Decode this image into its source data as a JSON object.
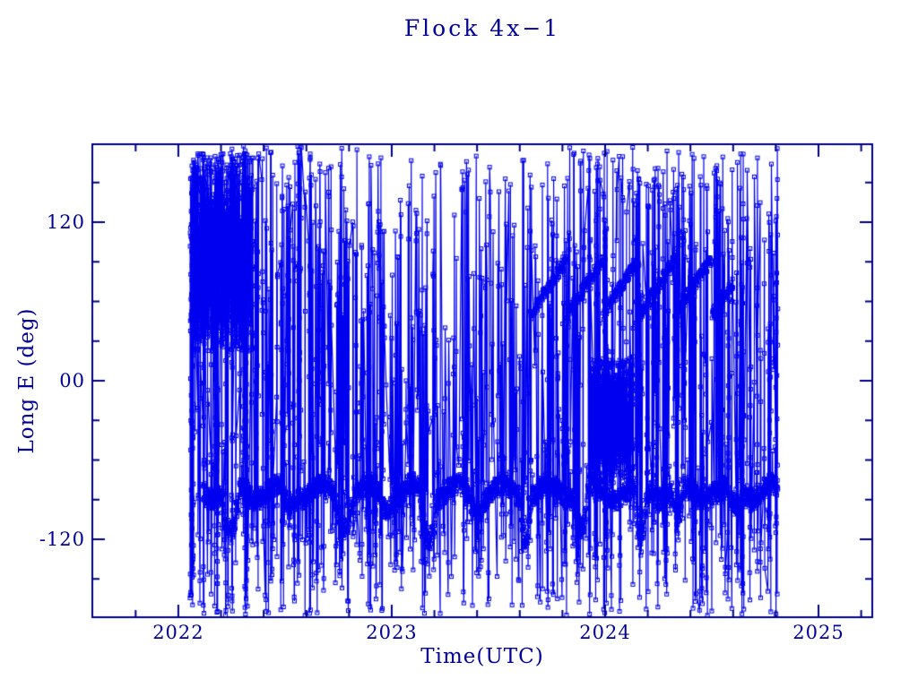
{
  "colors": {
    "background": "#ffffff",
    "axis": "#000080",
    "text": "#000099",
    "data": "#0000f0"
  },
  "chart_data": {
    "type": "scatter",
    "title": "Flock 4x−1",
    "xlabel": "Time(UTC)",
    "ylabel": "Long E (deg)",
    "xlim": [
      2021.597,
      2025.252
    ],
    "ylim": [
      -179,
      179
    ],
    "grid": false,
    "legend": null,
    "x_ticks": {
      "major": [
        {
          "value": 2022,
          "label": "2022"
        },
        {
          "value": 2023,
          "label": "2023"
        },
        {
          "value": 2024,
          "label": "2024"
        },
        {
          "value": 2025,
          "label": "2025"
        }
      ],
      "minor_step": 0.2
    },
    "y_ticks": {
      "major": [
        {
          "value": 120,
          "label": "120"
        },
        {
          "value": 0,
          "label": "00"
        },
        {
          "value": -120,
          "label": "-120"
        }
      ],
      "minor": [
        -150,
        -90,
        -60,
        -30,
        30,
        60,
        90,
        150
      ]
    },
    "marker": {
      "shape": "open-square",
      "size": 4,
      "color": "#0000f0"
    },
    "line": {
      "connect": true,
      "width": 1.2,
      "color": "#0000f0"
    },
    "data_extent": {
      "t_start": 2022.055,
      "t_end": 2024.81,
      "lon_min": -178,
      "lon_max": 178
    },
    "synthesis": {
      "seed": 20220113,
      "hash": {
        "lon_range": [
          -178,
          178
        ],
        "gap_probability": 0.05,
        "gap_extra_days": [
          2,
          6
        ],
        "intervals": [
          {
            "t0": 2022.055,
            "t1": 2022.18,
            "per_day": 10
          },
          {
            "t0": 2022.18,
            "t1": 2022.32,
            "per_day": 7.5
          },
          {
            "t0": 2022.32,
            "t1": 2022.62,
            "per_day": 4.0
          },
          {
            "t0": 2022.62,
            "t1": 2023.02,
            "per_day": 2.6
          },
          {
            "t0": 2023.02,
            "t1": 2023.36,
            "per_day": 2.0
          },
          {
            "t0": 2023.36,
            "t1": 2023.62,
            "per_day": 1.3
          },
          {
            "t0": 2023.62,
            "t1": 2023.93,
            "per_day": 2.6
          },
          {
            "t0": 2023.93,
            "t1": 2024.15,
            "per_day": 5.0
          },
          {
            "t0": 2024.15,
            "t1": 2024.56,
            "per_day": 3.0
          },
          {
            "t0": 2024.56,
            "t1": 2024.81,
            "per_day": 5.0
          }
        ]
      },
      "band": {
        "t0": 2022.12,
        "t1": 2024.81,
        "per_day": 2.2,
        "center": -84,
        "wave_amp": 6,
        "wave_period": 0.21,
        "jitter": 8,
        "outlier_probability": 0.08,
        "outlier_extra": [
          12,
          37
        ],
        "dip_depth": [
          10,
          40
        ],
        "dip_width": [
          0.05,
          0.1
        ],
        "dip_gap": [
          0.05,
          0.22
        ]
      },
      "clusters": [
        {
          "t0": 2022.06,
          "t1": 2022.35,
          "lon_min": 22,
          "lon_max": 172,
          "per_day": 6
        },
        {
          "t0": 2023.93,
          "t1": 2024.13,
          "lon_min": -78,
          "lon_max": 18,
          "per_day": 7
        }
      ],
      "sawtooth_strip": {
        "t0": 2023.65,
        "t1": 2024.6,
        "per_day": 1.6,
        "lon_base": 50,
        "amp": 42,
        "period": 0.17,
        "jitter": 5
      }
    }
  }
}
